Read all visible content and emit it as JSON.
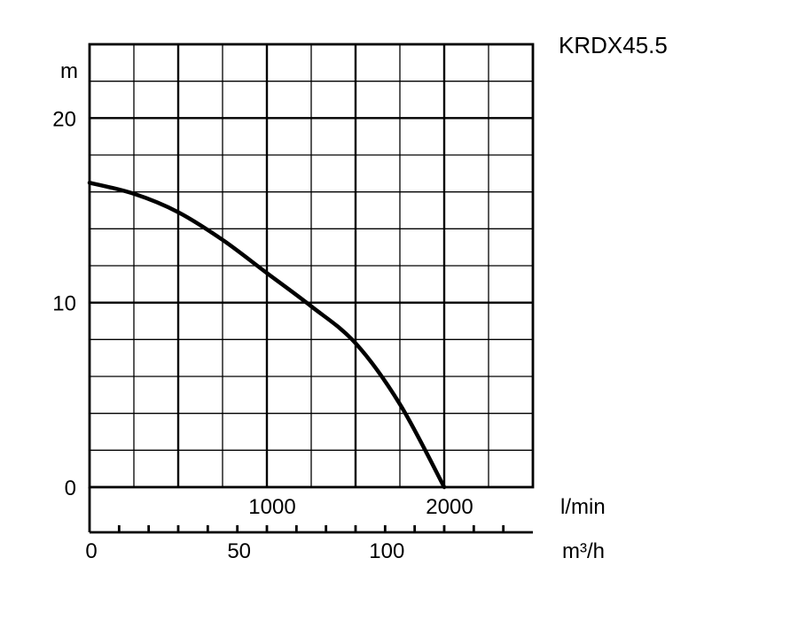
{
  "chart_data": {
    "type": "line",
    "title": "KRDX45.5",
    "ylabel": "m",
    "xlabel": "l/min",
    "xlabel_secondary": "m³/h",
    "xlim": [
      0,
      2500
    ],
    "ylim": [
      0,
      24
    ],
    "grid": true,
    "y_ticks": [
      {
        "value": 0,
        "label": "0"
      },
      {
        "value": 10,
        "label": "10"
      },
      {
        "value": 20,
        "label": "20"
      }
    ],
    "x_ticks_lmin": [
      {
        "value": 1000,
        "label": "1000"
      },
      {
        "value": 2000,
        "label": "2000"
      }
    ],
    "x_ticks_m3h": [
      {
        "value": 0,
        "label": "0"
      },
      {
        "value": 50,
        "label": "50"
      },
      {
        "value": 100,
        "label": "100"
      }
    ],
    "series": [
      {
        "x": [
          0,
          250,
          500,
          750,
          1000,
          1250,
          1500,
          1750,
          2000
        ],
        "y": [
          16.5,
          15.9,
          14.9,
          13.4,
          11.6,
          9.8,
          7.8,
          4.5,
          0
        ]
      }
    ]
  }
}
